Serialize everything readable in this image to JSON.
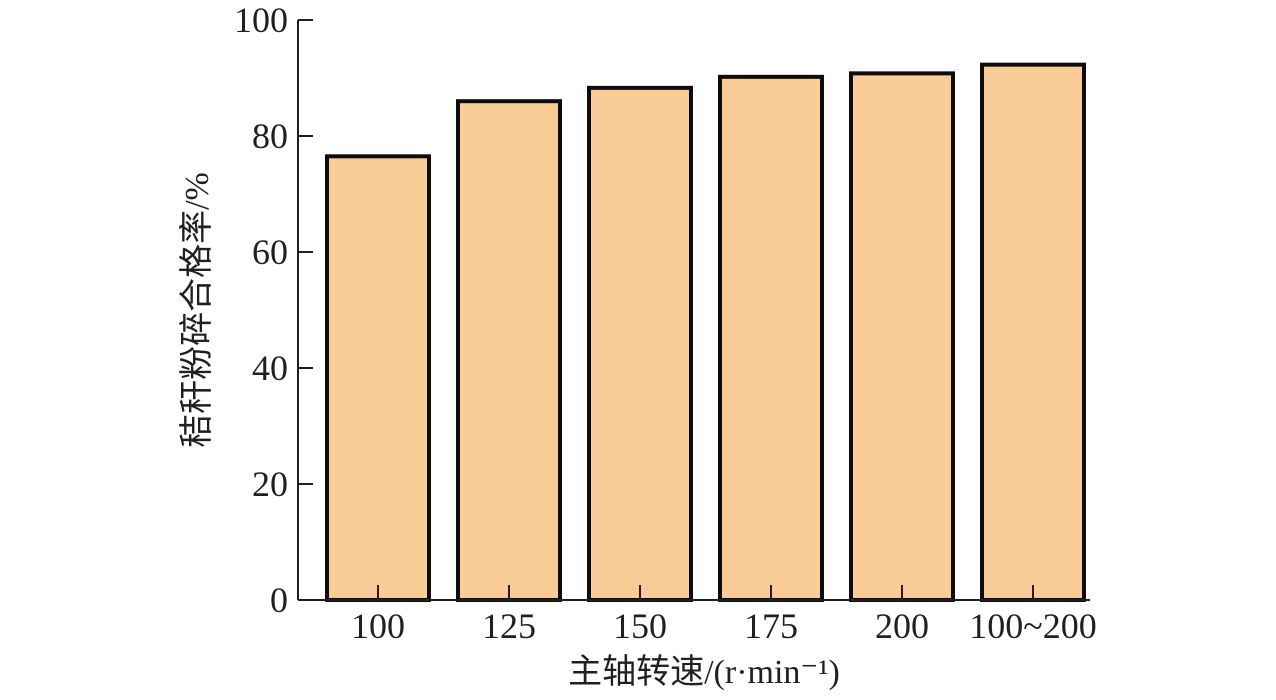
{
  "chart_data": {
    "type": "bar",
    "categories": [
      "100",
      "125",
      "150",
      "175",
      "200",
      "100~200"
    ],
    "values": [
      76.5,
      86.0,
      88.3,
      90.2,
      90.8,
      92.3
    ],
    "title": "",
    "xlabel": "主轴转速/(r·min⁻¹)",
    "ylabel": "秸秆粉碎合格率/%",
    "ylim": [
      0,
      100
    ],
    "yticks": [
      "0",
      "20",
      "40",
      "60",
      "80",
      "100"
    ],
    "grid": false,
    "legend": "none",
    "colors": {
      "bar_fill": "#f8cb97",
      "bar_stroke": "#0d0d0d",
      "axis": "#231f20"
    }
  }
}
